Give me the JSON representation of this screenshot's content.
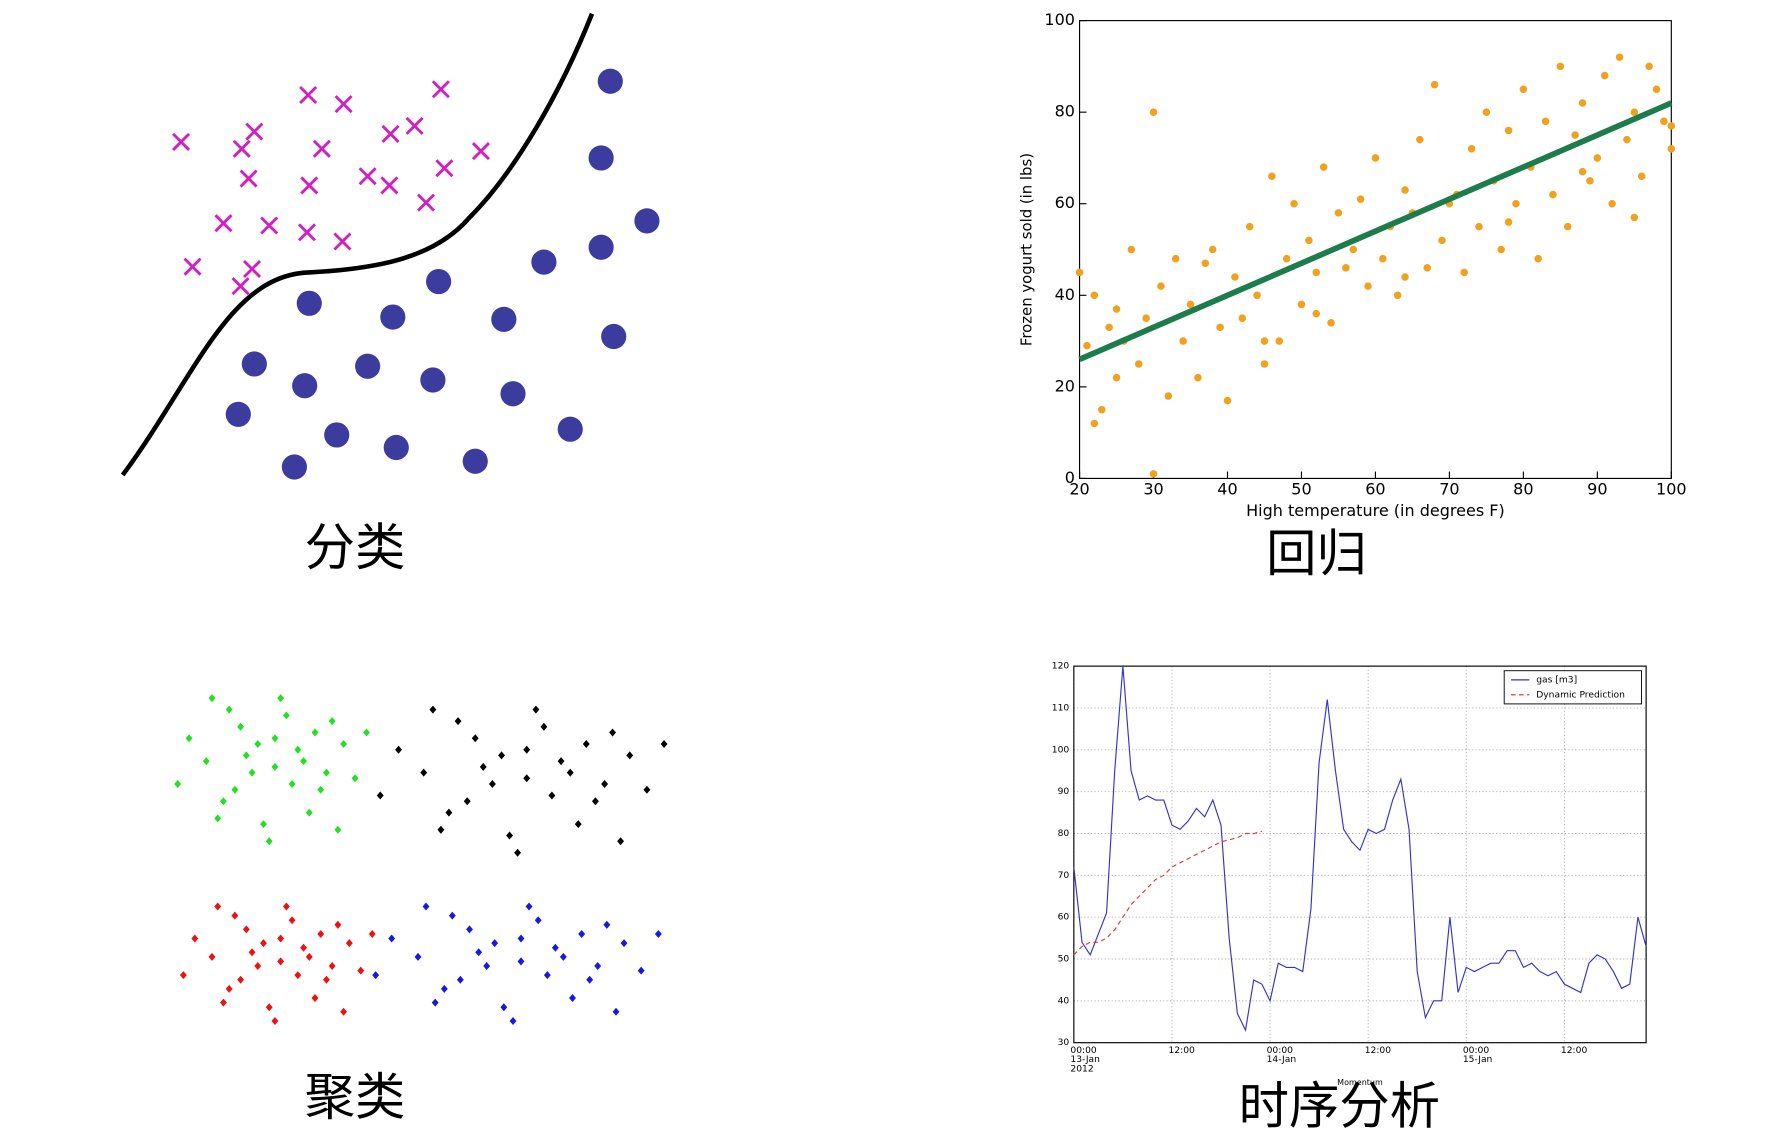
{
  "chart_data": [
    {
      "type": "scatter",
      "caption": "分类",
      "xlim": [
        0,
        520
      ],
      "ylim": [
        0,
        420
      ],
      "series": [
        {
          "marker": "x",
          "color": "#d21fc4",
          "x": [
            58,
            111,
            122,
            117,
            169,
            200,
            181,
            170,
            241,
            262,
            285,
            221,
            240,
            288,
            320,
            272,
            95,
            135,
            168,
            199,
            68,
            120,
            110
          ],
          "values": [
            296,
            290,
            305,
            264,
            337,
            329,
            290,
            258,
            303,
            310,
            342,
            266,
            258,
            273,
            288,
            243,
            225,
            223,
            217,
            209,
            187,
            185,
            170
          ]
        },
        {
          "marker": "o",
          "color": "#3c3b9e",
          "x": [
            433,
            425,
            465,
            425,
            375,
            283,
            170,
            243,
            340,
            436,
            122,
            166,
            221,
            278,
            348,
            108,
            194,
            246,
            398,
            315,
            157
          ],
          "values": [
            349,
            282,
            227,
            204,
            191,
            174,
            155,
            143,
            141,
            126,
            102,
            83,
            100,
            88,
            76,
            58,
            40,
            29,
            45,
            17,
            12
          ]
        }
      ]
    },
    {
      "type": "scatter",
      "caption": "回归",
      "xlabel": "High temperature (in degrees F)",
      "ylabel": "Frozen yogurt sold (in lbs)",
      "xlim": [
        20,
        100
      ],
      "ylim": [
        0,
        100
      ],
      "xticks": [
        20,
        30,
        40,
        50,
        60,
        70,
        80,
        90,
        100
      ],
      "yticks": [
        0,
        20,
        40,
        60,
        80,
        100
      ],
      "series": [
        {
          "marker": "dot",
          "color": "#f0a21e",
          "x": [
            20,
            21,
            22,
            22,
            23,
            24,
            25,
            25,
            26,
            27,
            28,
            29,
            30,
            31,
            32,
            33,
            34,
            35,
            36,
            37,
            38,
            39,
            40,
            41,
            42,
            43,
            44,
            45,
            46,
            47,
            48,
            49,
            50,
            51,
            52,
            53,
            54,
            55,
            56,
            57,
            58,
            59,
            60,
            61,
            62,
            63,
            64,
            65,
            66,
            67,
            68,
            69,
            70,
            71,
            72,
            73,
            74,
            75,
            76,
            77,
            78,
            79,
            80,
            81,
            82,
            83,
            84,
            85,
            86,
            87,
            88,
            89,
            90,
            91,
            92,
            93,
            94,
            95,
            96,
            97,
            98,
            99,
            100,
            30,
            45,
            52,
            64,
            78,
            95,
            100,
            88
          ],
          "values": [
            45,
            29,
            12,
            40,
            15,
            33,
            37,
            22,
            30,
            50,
            25,
            35,
            1,
            42,
            18,
            48,
            30,
            38,
            22,
            47,
            50,
            33,
            17,
            44,
            35,
            55,
            40,
            25,
            66,
            30,
            48,
            60,
            38,
            52,
            45,
            68,
            34,
            58,
            46,
            50,
            61,
            42,
            70,
            48,
            55,
            40,
            63,
            58,
            74,
            46,
            86,
            52,
            60,
            62,
            45,
            72,
            55,
            80,
            65,
            50,
            76,
            60,
            85,
            68,
            48,
            78,
            62,
            90,
            55,
            75,
            82,
            65,
            70,
            88,
            60,
            92,
            74,
            80,
            66,
            90,
            85,
            78,
            72,
            80,
            30,
            36,
            44,
            56,
            57,
            77,
            67
          ]
        },
        {
          "type": "line",
          "color": "#1c7c4c",
          "x": [
            20,
            100
          ],
          "values": [
            26,
            82
          ]
        }
      ]
    },
    {
      "type": "scatter",
      "caption": "聚类",
      "xlim": [
        0,
        480
      ],
      "ylim": [
        0,
        400
      ],
      "series": [
        {
          "marker": "D",
          "color": "#22e022",
          "x": [
            110,
            130,
            85,
            150,
            65,
            120,
            100,
            170,
            50,
            140,
            80,
            125,
            95,
            160,
            60,
            180,
            35,
            115,
            105,
            145,
            75,
            155,
            90,
            135,
            70,
            190,
            25,
            165,
            55,
            110
          ],
          "values": [
            260,
            275,
            270,
            240,
            230,
            305,
            210,
            280,
            265,
            220,
            295,
            245,
            280,
            300,
            215,
            250,
            285,
            320,
            195,
            290,
            240,
            255,
            255,
            265,
            310,
            290,
            245,
            205,
            320,
            285
          ]
        },
        {
          "marker": "D",
          "color": "#000000",
          "x": [
            330,
            360,
            292,
            390,
            262,
            345,
            315,
            420,
            240,
            375,
            285,
            352,
            308,
            405,
            255,
            435,
            218,
            338,
            322,
            382,
            278,
            398,
            300,
            368,
            270,
            450,
            202,
            412,
            248,
            330
          ],
          "values": [
            250,
            265,
            260,
            230,
            220,
            295,
            200,
            270,
            255,
            210,
            285,
            235,
            270,
            290,
            205,
            240,
            275,
            310,
            185,
            280,
            230,
            245,
            245,
            255,
            300,
            280,
            235,
            195,
            310,
            275
          ]
        },
        {
          "marker": "D",
          "color": "#ee1111",
          "x": [
            115,
            135,
            90,
            155,
            70,
            125,
            105,
            175,
            55,
            145,
            85,
            130,
            100,
            165,
            65,
            185,
            40,
            120,
            110,
            150,
            80,
            160,
            95,
            140,
            75,
            195,
            30,
            170,
            60,
            115
          ],
          "values": [
            90,
            102,
            98,
            74,
            66,
            126,
            50,
            106,
            94,
            58,
            118,
            78,
            106,
            122,
            54,
            82,
            110,
            138,
            38,
            114,
            74,
            86,
            86,
            94,
            130,
            114,
            78,
            46,
            138,
            110
          ]
        },
        {
          "marker": "D",
          "color": "#1818e0",
          "x": [
            325,
            355,
            288,
            385,
            258,
            340,
            310,
            415,
            235,
            370,
            280,
            348,
            302,
            400,
            250,
            430,
            212,
            332,
            318,
            378,
            272,
            392,
            295,
            362,
            265,
            445,
            198,
            408,
            242,
            325
          ],
          "values": [
            90,
            102,
            98,
            74,
            66,
            126,
            50,
            106,
            94,
            58,
            118,
            78,
            106,
            122,
            54,
            82,
            110,
            138,
            38,
            114,
            74,
            86,
            86,
            94,
            130,
            114,
            78,
            46,
            138,
            110
          ]
        }
      ]
    },
    {
      "type": "line",
      "caption": "时序分析",
      "xlabel": "Momentum",
      "grid": true,
      "legend": "upper right",
      "xlim": [
        0,
        70
      ],
      "ylim": [
        30,
        120
      ],
      "yticks": [
        30,
        40,
        50,
        60,
        70,
        80,
        90,
        100,
        110,
        120
      ],
      "xticks": [
        {
          "value": 0,
          "label": "00:00\n13-Jan\n2012"
        },
        {
          "value": 12,
          "label": "12:00"
        },
        {
          "value": 24,
          "label": "00:00\n14-Jan"
        },
        {
          "value": 36,
          "label": "12:00"
        },
        {
          "value": 48,
          "label": "00:00\n15-Jan"
        },
        {
          "value": 60,
          "label": "12:00"
        }
      ],
      "x": [
        0,
        1,
        2,
        3,
        4,
        5,
        6,
        7,
        8,
        9,
        10,
        11,
        12,
        13,
        14,
        15,
        16,
        17,
        18,
        19,
        20,
        21,
        22,
        23,
        24,
        25,
        26,
        27,
        28,
        29,
        30,
        31,
        32,
        33,
        34,
        35,
        36,
        37,
        38,
        39,
        40,
        41,
        42,
        43,
        44,
        45,
        46,
        47,
        48,
        49,
        50,
        51,
        52,
        53,
        54,
        55,
        56,
        57,
        58,
        59,
        60,
        61,
        62,
        63,
        64,
        65,
        66,
        67,
        68,
        69,
        70
      ],
      "series": [
        {
          "name": "gas [m3]",
          "color": "#3333cc",
          "dash": false,
          "values": [
            72,
            54,
            51,
            56,
            61,
            95,
            120,
            95,
            88,
            89,
            88,
            88,
            82,
            81,
            83,
            86,
            84,
            88,
            82,
            55,
            37,
            33,
            45,
            44,
            40,
            49,
            48,
            48,
            47,
            62,
            97,
            112,
            95,
            81,
            78,
            76,
            81,
            80,
            81,
            88,
            93,
            81,
            47,
            36,
            40,
            40,
            60,
            42,
            48,
            47,
            48,
            49,
            49,
            52,
            52,
            48,
            49,
            47,
            46,
            47,
            44,
            43,
            42,
            49,
            51,
            50,
            47,
            43,
            44,
            60,
            53
          ]
        },
        {
          "name": "Dynamic Prediction",
          "color": "#e03a3a",
          "dash": true,
          "values": [
            51,
            53,
            54,
            54,
            55,
            57,
            60,
            63,
            65,
            67,
            69,
            70,
            72,
            73,
            74,
            75,
            76,
            77,
            78,
            78.5,
            79,
            80,
            80,
            80.5,
            null,
            null,
            null,
            null,
            null,
            null,
            null,
            null,
            null,
            null,
            null,
            null,
            null,
            null,
            null,
            null,
            null,
            null,
            null,
            null,
            null,
            null,
            null,
            null,
            null,
            null,
            null,
            null,
            null,
            null,
            null,
            null,
            null,
            null,
            null,
            null,
            null,
            null,
            null,
            null,
            null,
            null,
            null,
            null,
            null,
            null,
            null
          ]
        }
      ]
    }
  ]
}
